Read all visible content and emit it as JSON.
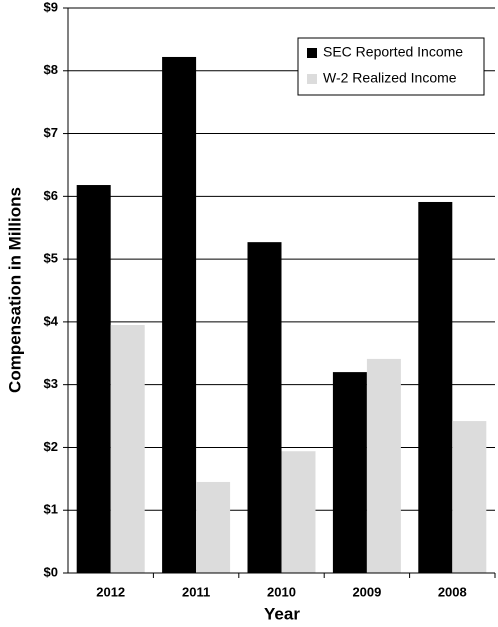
{
  "chart_data": {
    "type": "bar",
    "x_label": "Year",
    "y_label": "Compensation in Millions",
    "categories": [
      "2012",
      "2011",
      "2010",
      "2009",
      "2008"
    ],
    "series": [
      {
        "name": "SEC Reported Income",
        "color": "#000000",
        "values": [
          6.18,
          8.22,
          5.27,
          3.2,
          5.91
        ]
      },
      {
        "name": "W-2 Realized Income",
        "color": "#dcdcdc",
        "values": [
          3.95,
          1.45,
          1.94,
          3.41,
          2.42
        ]
      }
    ],
    "ylim": [
      0,
      9
    ],
    "yticks": [
      {
        "value": 0,
        "label": "$0"
      },
      {
        "value": 1,
        "label": "$1"
      },
      {
        "value": 2,
        "label": "$2"
      },
      {
        "value": 3,
        "label": "$3"
      },
      {
        "value": 4,
        "label": "$4"
      },
      {
        "value": 5,
        "label": "$5"
      },
      {
        "value": 6,
        "label": "$6"
      },
      {
        "value": 7,
        "label": "$7"
      },
      {
        "value": 8,
        "label": "$8"
      },
      {
        "value": 9,
        "label": "$9"
      }
    ],
    "grid": true,
    "legend": "upper right"
  }
}
